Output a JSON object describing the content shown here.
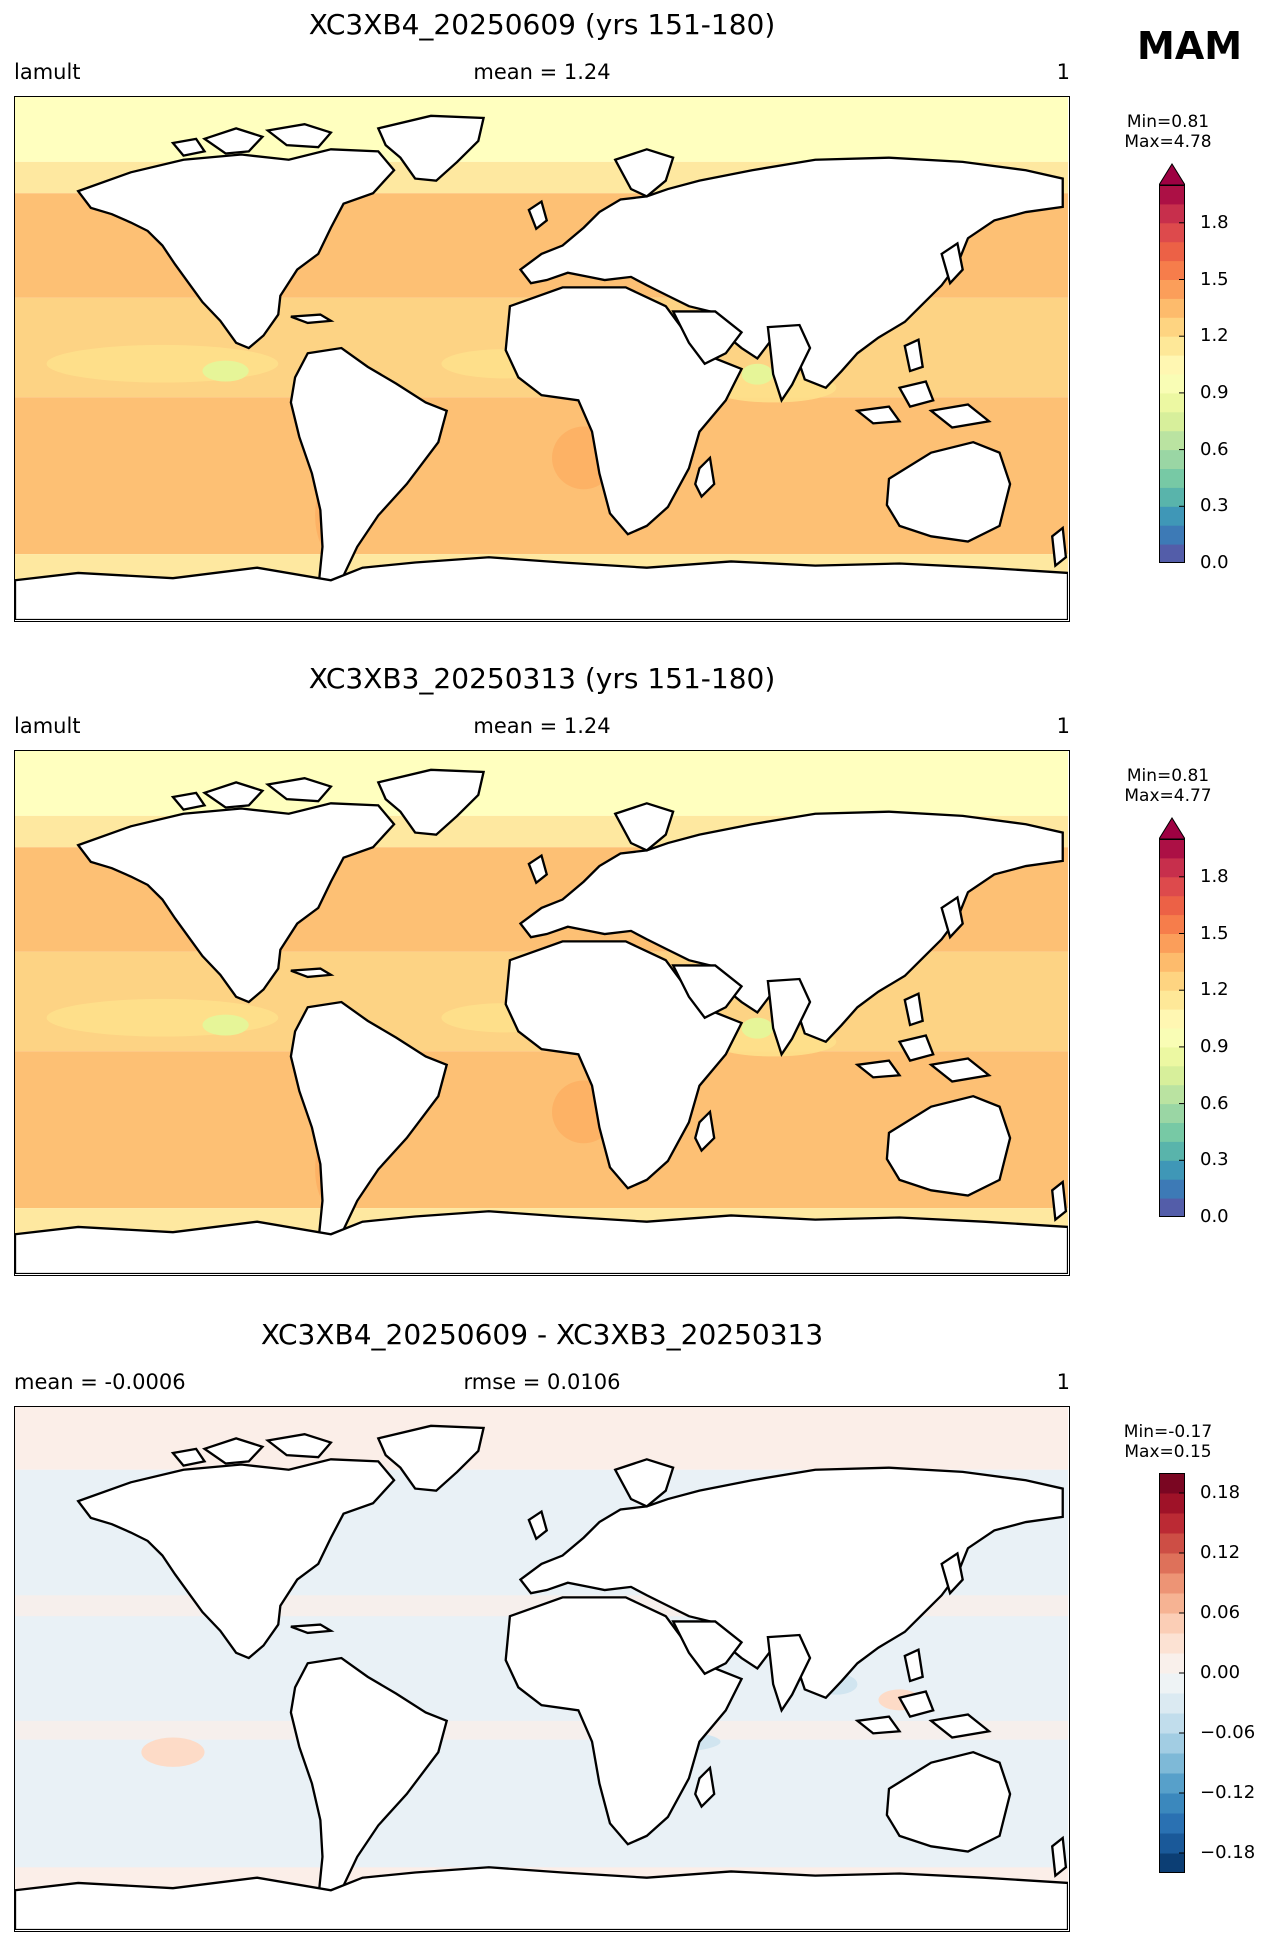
{
  "season": "MAM",
  "panels": [
    {
      "title": "XC3XB4_20250609 (yrs 151-180)",
      "left_label": "lamult",
      "center_label": "mean = 1.24",
      "right_label": "1",
      "minmax": "Min=0.81\nMax=4.78",
      "colormap": "Spectral_r",
      "colors": [
        "#5e4fa2",
        "#3288bd",
        "#66c2a5",
        "#abdda4",
        "#e6f598",
        "#ffffbf",
        "#fee08b",
        "#fdae61",
        "#f46d43",
        "#d53e4f",
        "#9e0142"
      ],
      "ticks": [
        "0.0",
        "0.3",
        "0.6",
        "0.9",
        "1.2",
        "1.5",
        "1.8"
      ]
    },
    {
      "title": "XC3XB3_20250313 (yrs 151-180)",
      "left_label": "lamult",
      "center_label": "mean = 1.24",
      "right_label": "1",
      "minmax": "Min=0.81\nMax=4.77",
      "colormap": "Spectral_r",
      "colors": [
        "#5e4fa2",
        "#3288bd",
        "#66c2a5",
        "#abdda4",
        "#e6f598",
        "#ffffbf",
        "#fee08b",
        "#fdae61",
        "#f46d43",
        "#d53e4f",
        "#9e0142"
      ],
      "ticks": [
        "0.0",
        "0.3",
        "0.6",
        "0.9",
        "1.2",
        "1.5",
        "1.8"
      ]
    },
    {
      "title": "XC3XB4_20250609 - XC3XB3_20250313",
      "left_label": "mean = -0.0006",
      "center_label": "rmse = 0.0106",
      "right_label": "1",
      "minmax": "Min=-0.17\nMax=0.15",
      "colormap": "RdBu_r",
      "colors": [
        "#053061",
        "#2166ac",
        "#4393c3",
        "#92c5de",
        "#d1e5f0",
        "#f7f7f7",
        "#fddbc7",
        "#f4a582",
        "#d6604d",
        "#b2182b",
        "#67001f"
      ],
      "ticks": [
        "−0.18",
        "−0.12",
        "−0.06",
        "0.00",
        "0.06",
        "0.12",
        "0.18"
      ]
    }
  ],
  "chart_data": [
    {
      "type": "heatmap",
      "title": "XC3XB4_20250609 (yrs 151-180)",
      "variable": "lamult",
      "season": "MAM",
      "mean": 1.24,
      "min": 0.81,
      "max": 4.78,
      "colorbar_range": [
        0.0,
        2.0
      ],
      "colorbar_ticks": [
        0.0,
        0.3,
        0.6,
        0.9,
        1.2,
        1.5,
        1.8
      ],
      "colorbar_extend": "max",
      "colormap": "Spectral_r",
      "field_description": "global ocean field ~1.0-1.6; highest (~1.5) in subtropical/mid-latitude oceans, lowest (~0.9-1.1) in equatorial bands and high latitudes; land masked"
    },
    {
      "type": "heatmap",
      "title": "XC3XB3_20250313 (yrs 151-180)",
      "variable": "lamult",
      "season": "MAM",
      "mean": 1.24,
      "min": 0.81,
      "max": 4.77,
      "colorbar_range": [
        0.0,
        2.0
      ],
      "colorbar_ticks": [
        0.0,
        0.3,
        0.6,
        0.9,
        1.2,
        1.5,
        1.8
      ],
      "colorbar_extend": "max",
      "colormap": "Spectral_r"
    },
    {
      "type": "heatmap",
      "title": "XC3XB4_20250609 - XC3XB3_20250313",
      "season": "MAM",
      "mean": -0.0006,
      "rmse": 0.0106,
      "min": -0.17,
      "max": 0.15,
      "colorbar_range": [
        -0.2,
        0.2
      ],
      "colorbar_ticks": [
        -0.18,
        -0.12,
        -0.06,
        0.0,
        0.06,
        0.12,
        0.18
      ],
      "colormap": "RdBu_r"
    }
  ]
}
